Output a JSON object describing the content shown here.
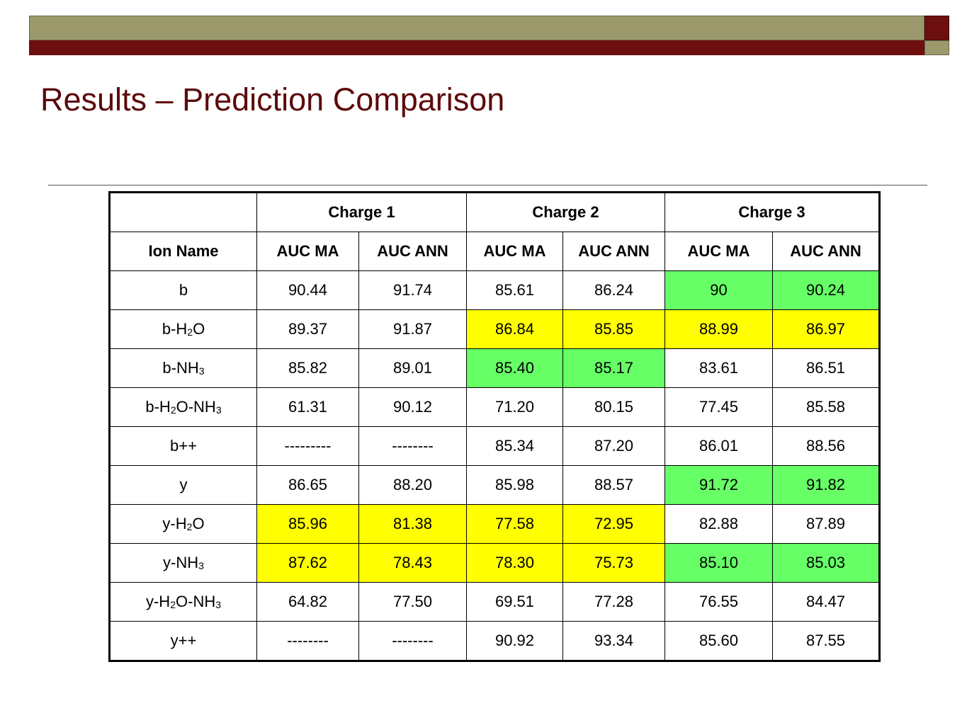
{
  "title": "Results – Prediction Comparison",
  "colors": {
    "green_highlight": "#66ff66",
    "yellow_highlight": "#ffff00",
    "title_color": "#5c0a0a"
  },
  "table": {
    "charges": [
      "Charge 1",
      "Charge 2",
      "Charge 3"
    ],
    "ion_header": "Ion Name",
    "metric_headers": [
      "AUC MA",
      "AUC ANN",
      "AUC MA",
      "AUC ANN",
      "AUC MA",
      "AUC ANN"
    ],
    "rows": [
      {
        "ion_parts": [
          "b"
        ],
        "cells": [
          {
            "v": "90.44",
            "h": ""
          },
          {
            "v": "91.74",
            "h": ""
          },
          {
            "v": "85.61",
            "h": ""
          },
          {
            "v": "86.24",
            "h": ""
          },
          {
            "v": "90",
            "h": "green"
          },
          {
            "v": "90.24",
            "h": "green"
          }
        ]
      },
      {
        "ion_parts": [
          "b-H",
          "2",
          "O"
        ],
        "cells": [
          {
            "v": "89.37",
            "h": ""
          },
          {
            "v": "91.87",
            "h": ""
          },
          {
            "v": "86.84",
            "h": "yellow"
          },
          {
            "v": "85.85",
            "h": "yellow"
          },
          {
            "v": "88.99",
            "h": "yellow"
          },
          {
            "v": "86.97",
            "h": "yellow"
          }
        ]
      },
      {
        "ion_parts": [
          "b-NH",
          "3"
        ],
        "cells": [
          {
            "v": "85.82",
            "h": ""
          },
          {
            "v": "89.01",
            "h": ""
          },
          {
            "v": "85.40",
            "h": "green"
          },
          {
            "v": "85.17",
            "h": "green"
          },
          {
            "v": "83.61",
            "h": ""
          },
          {
            "v": "86.51",
            "h": ""
          }
        ]
      },
      {
        "ion_parts": [
          "b-H",
          "2",
          "O-NH",
          "3"
        ],
        "cells": [
          {
            "v": "61.31",
            "h": ""
          },
          {
            "v": "90.12",
            "h": ""
          },
          {
            "v": "71.20",
            "h": ""
          },
          {
            "v": "80.15",
            "h": ""
          },
          {
            "v": "77.45",
            "h": ""
          },
          {
            "v": "85.58",
            "h": ""
          }
        ]
      },
      {
        "ion_parts": [
          "b++"
        ],
        "cells": [
          {
            "v": "---------",
            "h": ""
          },
          {
            "v": "--------",
            "h": ""
          },
          {
            "v": "85.34",
            "h": ""
          },
          {
            "v": "87.20",
            "h": ""
          },
          {
            "v": "86.01",
            "h": ""
          },
          {
            "v": "88.56",
            "h": ""
          }
        ]
      },
      {
        "ion_parts": [
          "y"
        ],
        "cells": [
          {
            "v": "86.65",
            "h": ""
          },
          {
            "v": "88.20",
            "h": ""
          },
          {
            "v": "85.98",
            "h": ""
          },
          {
            "v": "88.57",
            "h": ""
          },
          {
            "v": "91.72",
            "h": "green"
          },
          {
            "v": "91.82",
            "h": "green"
          }
        ]
      },
      {
        "ion_parts": [
          "y-H",
          "2",
          "O"
        ],
        "cells": [
          {
            "v": "85.96",
            "h": "yellow"
          },
          {
            "v": "81.38",
            "h": "yellow"
          },
          {
            "v": "77.58",
            "h": "yellow"
          },
          {
            "v": "72.95",
            "h": "yellow"
          },
          {
            "v": "82.88",
            "h": ""
          },
          {
            "v": "87.89",
            "h": ""
          }
        ]
      },
      {
        "ion_parts": [
          "y-NH",
          "3"
        ],
        "cells": [
          {
            "v": "87.62",
            "h": "yellow"
          },
          {
            "v": "78.43",
            "h": "yellow"
          },
          {
            "v": "78.30",
            "h": "yellow"
          },
          {
            "v": "75.73",
            "h": "yellow"
          },
          {
            "v": "85.10",
            "h": "green"
          },
          {
            "v": "85.03",
            "h": "green"
          }
        ]
      },
      {
        "ion_parts": [
          "y-H",
          "2",
          "O-NH",
          "3"
        ],
        "cells": [
          {
            "v": "64.82",
            "h": ""
          },
          {
            "v": "77.50",
            "h": ""
          },
          {
            "v": "69.51",
            "h": ""
          },
          {
            "v": "77.28",
            "h": ""
          },
          {
            "v": "76.55",
            "h": ""
          },
          {
            "v": "84.47",
            "h": ""
          }
        ]
      },
      {
        "ion_parts": [
          "y++"
        ],
        "cells": [
          {
            "v": "--------",
            "h": ""
          },
          {
            "v": "--------",
            "h": ""
          },
          {
            "v": "90.92",
            "h": ""
          },
          {
            "v": "93.34",
            "h": ""
          },
          {
            "v": "85.60",
            "h": ""
          },
          {
            "v": "87.55",
            "h": ""
          }
        ]
      }
    ]
  }
}
